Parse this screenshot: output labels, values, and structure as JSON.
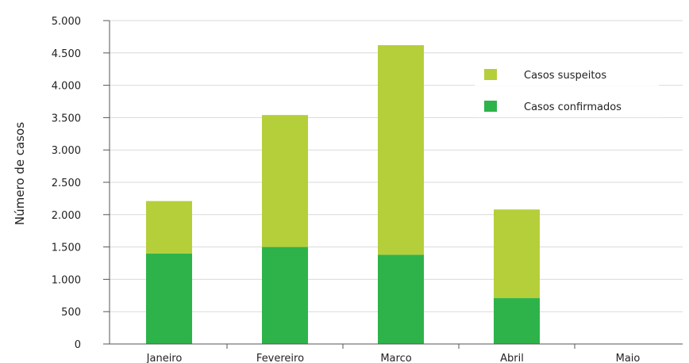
{
  "chart_data": {
    "type": "bar",
    "stacked": true,
    "categories": [
      "Janeiro",
      "Fevereiro",
      "Marco",
      "Abril",
      "Maio",
      ""
    ],
    "series": [
      {
        "name": "Casos confirmados",
        "values": [
          1400,
          1500,
          1380,
          710,
          0,
          30
        ],
        "color": "#2db34a"
      },
      {
        "name": "Casos suspeitos",
        "values": [
          810,
          2040,
          3240,
          1370,
          0,
          90
        ],
        "color": "#b5cf3a"
      }
    ],
    "ylabel": "Número de casos",
    "ylim": [
      0,
      5000
    ],
    "yticks": [
      {
        "value": 0,
        "label": "0"
      },
      {
        "value": 500,
        "label": "500"
      },
      {
        "value": 1000,
        "label": "1.000"
      },
      {
        "value": 1500,
        "label": "1.500"
      },
      {
        "value": 2000,
        "label": "2.000"
      },
      {
        "value": 2500,
        "label": "2.500"
      },
      {
        "value": 3000,
        "label": "3.000"
      },
      {
        "value": 3500,
        "label": "3.500"
      },
      {
        "value": 4000,
        "label": "4.000"
      },
      {
        "value": 4500,
        "label": "4.500"
      },
      {
        "value": 5000,
        "label": "5.000"
      }
    ],
    "grid": true,
    "gridColor": "#d9d9d9",
    "axisColor": "#555555",
    "legend": {
      "position": "top-right",
      "order": [
        "Casos suspeitos",
        "Casos confirmados"
      ]
    }
  }
}
